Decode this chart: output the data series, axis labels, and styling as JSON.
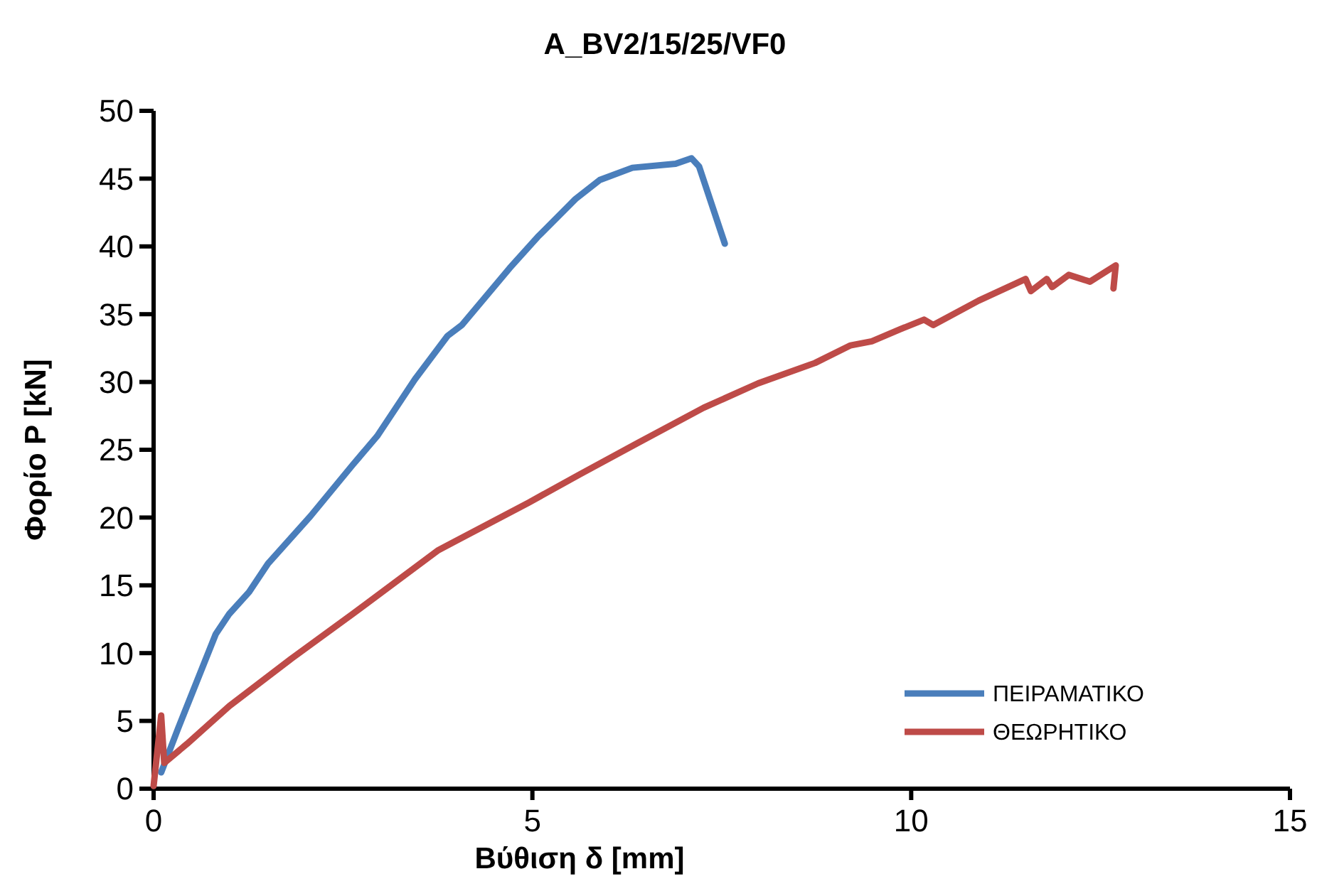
{
  "chart_data": {
    "type": "line",
    "title": "A_BV2/15/25/VF0",
    "xlabel": "Βύθιση δ [mm]",
    "ylabel": "Φορίο P [kN]",
    "xlim": [
      0,
      15
    ],
    "xticks": [
      0,
      5,
      10,
      15
    ],
    "ylim": [
      0,
      50
    ],
    "yticks": [
      0,
      5,
      10,
      15,
      20,
      25,
      30,
      35,
      40,
      45,
      50
    ],
    "grid": false,
    "legend": "bottom right",
    "marker": "none",
    "line_style": "solid",
    "series": [
      {
        "name": "ΠΕΙΡΑΜΑΤΙΚΟ",
        "color": "#4a7ebb",
        "x": [
          0.1,
          0.32,
          0.57,
          0.82,
          1.0,
          1.26,
          1.51,
          2.07,
          2.63,
          2.95,
          3.45,
          3.88,
          4.07,
          4.7,
          5.07,
          5.57,
          5.89,
          6.32,
          6.89,
          7.1,
          7.2,
          7.54
        ],
        "values": [
          1.2,
          4.4,
          7.9,
          11.4,
          12.9,
          14.5,
          16.6,
          20.1,
          23.9,
          26.0,
          30.2,
          33.4,
          34.2,
          38.4,
          40.7,
          43.5,
          44.9,
          45.8,
          46.1,
          46.5,
          45.9,
          40.2
        ]
      },
      {
        "name": "ΘΕΩΡΗΤΙΚΟ",
        "color": "#be4b48",
        "x": [
          0.0,
          0.1,
          0.14,
          0.44,
          1.0,
          1.82,
          2.63,
          3.76,
          4.95,
          5.63,
          6.39,
          7.26,
          7.98,
          8.73,
          9.2,
          9.48,
          9.86,
          10.17,
          10.29,
          10.89,
          11.51,
          11.58,
          11.79,
          11.86,
          12.08,
          12.36,
          12.7,
          12.67
        ],
        "values": [
          0.2,
          5.4,
          1.9,
          3.3,
          6.1,
          9.6,
          12.9,
          17.6,
          21.1,
          23.2,
          25.5,
          28.1,
          29.9,
          31.4,
          32.7,
          33.0,
          33.9,
          34.6,
          34.2,
          36.0,
          37.6,
          36.7,
          37.6,
          37.0,
          37.9,
          37.4,
          38.6,
          36.9
        ]
      }
    ]
  }
}
